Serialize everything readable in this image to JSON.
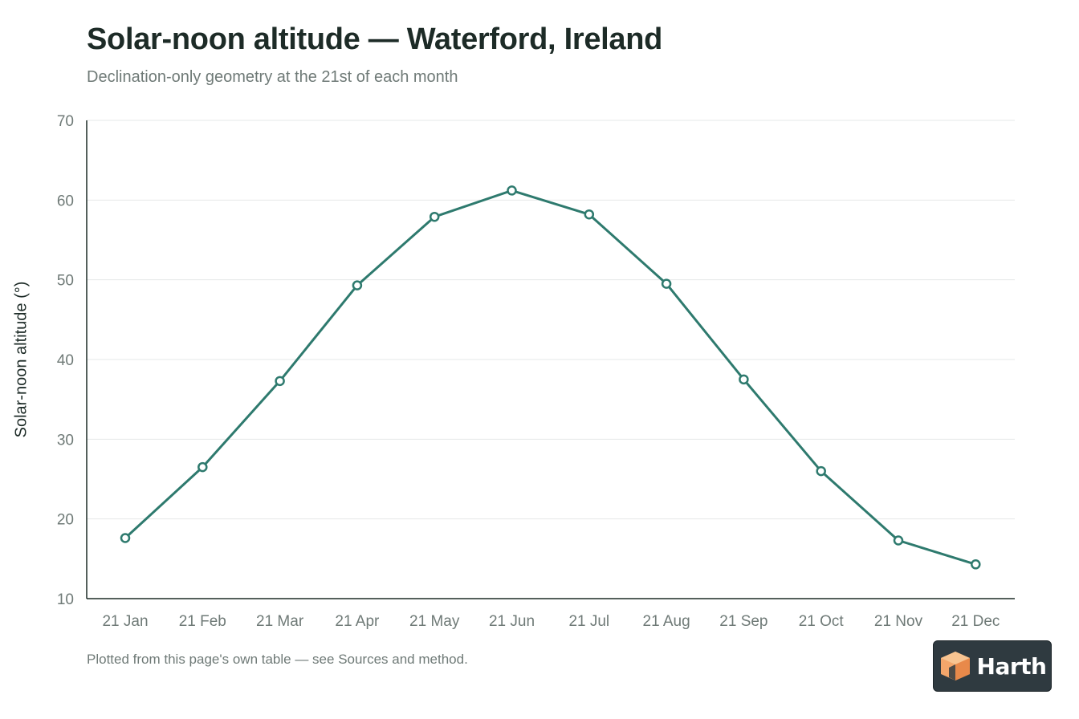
{
  "header": {
    "title": "Solar-noon altitude — Waterford, Ireland",
    "subtitle": "Declination-only geometry at the 21st of each month"
  },
  "footer": {
    "note": "Plotted from this page's own table — see Sources and method.",
    "logo_text": "Harth"
  },
  "colors": {
    "line": "#2e7a6e",
    "axis": "#1d2b27",
    "grid": "#e6e8e8",
    "marker_fill": "#ffffff"
  },
  "chart_data": {
    "type": "line",
    "title": "Solar-noon altitude — Waterford, Ireland",
    "subtitle": "Declination-only geometry at the 21st of each month",
    "xlabel": "",
    "ylabel": "Solar-noon altitude (°)",
    "ylim": [
      10,
      70
    ],
    "yticks": [
      10,
      20,
      30,
      40,
      50,
      60,
      70
    ],
    "grid": true,
    "legend": "none",
    "categories": [
      "21 Jan",
      "21 Feb",
      "21 Mar",
      "21 Apr",
      "21 May",
      "21 Jun",
      "21 Jul",
      "21 Aug",
      "21 Sep",
      "21 Oct",
      "21 Nov",
      "21 Dec"
    ],
    "series": [
      {
        "values": [
          17.6,
          26.5,
          37.3,
          49.3,
          57.9,
          61.2,
          58.2,
          49.5,
          37.5,
          26.0,
          17.3,
          14.3
        ]
      }
    ]
  }
}
